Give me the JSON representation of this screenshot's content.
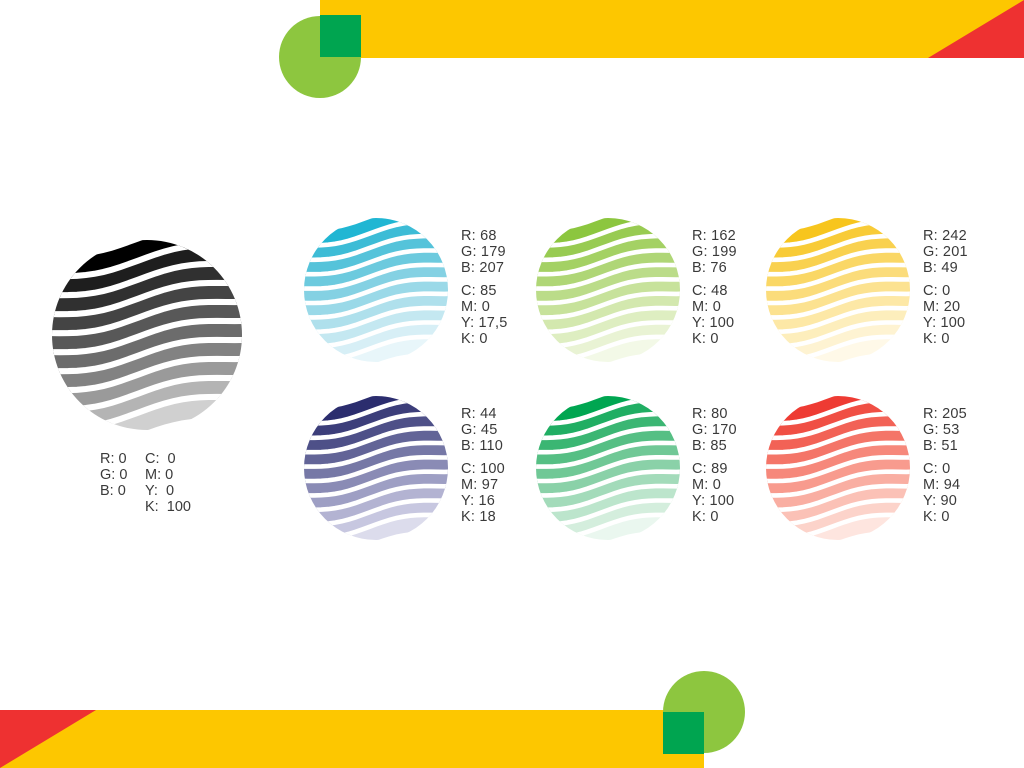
{
  "accent_colors": {
    "yellow": "#FDC700",
    "red": "#EE3131",
    "light_green": "#8DC63F",
    "dark_green": "#00A550"
  },
  "swatches": [
    {
      "id": "black",
      "colors": [
        "#000000",
        "#1e1e1e",
        "#303030",
        "#444444",
        "#585858",
        "#6c6c6c",
        "#828282",
        "#9a9a9a",
        "#b4b4b4",
        "#d0d0d0"
      ],
      "rgb": [
        "R: 0",
        "G: 0",
        "B: 0"
      ],
      "cmyk": [
        "C:  0",
        "M: 0",
        "Y:  0",
        "K:  100"
      ]
    },
    {
      "id": "cyan",
      "colors": [
        "#20B6D3",
        "#3DBCD6",
        "#55C3DA",
        "#6CCADE",
        "#84D1E3",
        "#9AD9E8",
        "#AFE0EC",
        "#C4E8F1",
        "#D7EFF6",
        "#E8F6FA"
      ],
      "rgb": [
        "R: 68",
        "G: 179",
        "B: 207"
      ],
      "cmyk": [
        "C: 85",
        "M: 0",
        "Y: 17,5",
        "K: 0"
      ]
    },
    {
      "id": "lime",
      "colors": [
        "#8CC63F",
        "#98CB52",
        "#A4D164",
        "#AFD676",
        "#BBDC89",
        "#C7E29B",
        "#D3E8AE",
        "#DEEEC1",
        "#E9F3D4",
        "#F3F9E7"
      ],
      "rgb": [
        "R: 162",
        "G: 199",
        "B: 76"
      ],
      "cmyk": [
        "C: 48",
        "M: 0",
        "Y: 100",
        "K: 0"
      ]
    },
    {
      "id": "yellow",
      "colors": [
        "#F7C51D",
        "#F8CB37",
        "#F9D14F",
        "#FAD765",
        "#FBDC7B",
        "#FCE290",
        "#FDE8A6",
        "#FDEEBC",
        "#FEF3D2",
        "#FFF9E8"
      ],
      "rgb": [
        "R: 242",
        "G: 201",
        "B: 49"
      ],
      "cmyk": [
        "C: 0",
        "M: 20",
        "Y: 100",
        "K: 0"
      ]
    },
    {
      "id": "indigo",
      "colors": [
        "#2B2D6E",
        "#3C3E7A",
        "#4E5088",
        "#626497",
        "#7678A6",
        "#8A8BB5",
        "#9E9FC4",
        "#B3B3D2",
        "#C7C7E0",
        "#DCDCEC"
      ],
      "rgb": [
        "R: 44",
        "G: 45",
        "B: 110"
      ],
      "cmyk": [
        "C: 100",
        "M: 97",
        "Y: 16",
        "K: 18"
      ]
    },
    {
      "id": "green",
      "colors": [
        "#00A651",
        "#20AE63",
        "#3BB673",
        "#56BF84",
        "#70C896",
        "#8AD1A8",
        "#A3DBBA",
        "#BCE5CC",
        "#D4EEDD",
        "#EAF7EF"
      ],
      "rgb": [
        "R: 80",
        "G: 170",
        "B: 85"
      ],
      "cmyk": [
        "C: 89",
        "M: 0",
        "Y: 100",
        "K: 0"
      ]
    },
    {
      "id": "red",
      "colors": [
        "#EE3B33",
        "#F04F44",
        "#F26256",
        "#F47568",
        "#F6887B",
        "#F89B8E",
        "#F9AEA2",
        "#FBC1B6",
        "#FCD3CA",
        "#FEE5DF"
      ],
      "rgb": [
        "R: 205",
        "G: 53",
        "B: 51"
      ],
      "cmyk": [
        "C: 0",
        "M: 94",
        "Y: 90",
        "K: 0"
      ]
    }
  ]
}
